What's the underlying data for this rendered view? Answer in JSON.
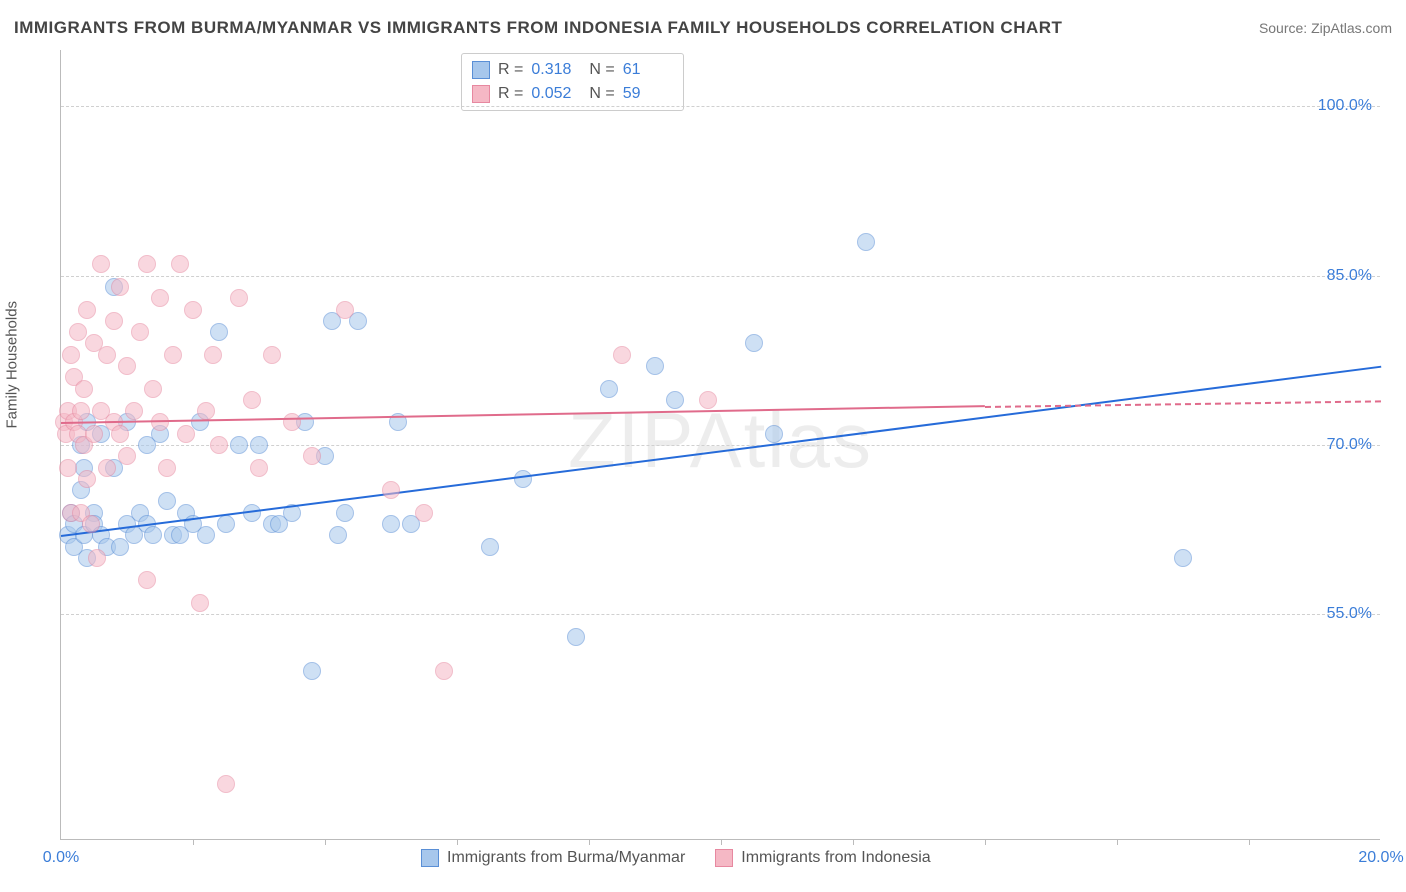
{
  "title": "IMMIGRANTS FROM BURMA/MYANMAR VS IMMIGRANTS FROM INDONESIA FAMILY HOUSEHOLDS CORRELATION CHART",
  "source": "Source: ZipAtlas.com",
  "ylabel": "Family Households",
  "watermark": "ZIPAtlas",
  "chart": {
    "type": "scatter",
    "xlim": [
      0,
      20
    ],
    "ylim": [
      35,
      105
    ],
    "marker_radius": 9,
    "marker_opacity": 0.55,
    "background_color": "#ffffff",
    "grid_color": "#d0d0d0",
    "axis_color": "#bbbbbb",
    "tick_color": "#3b7dd8",
    "yticks": [
      55.0,
      70.0,
      85.0,
      100.0
    ],
    "ytick_format": "%.1f%%",
    "xticks_minor": [
      2,
      4,
      6,
      8,
      10,
      12,
      14,
      16,
      18
    ],
    "xticks_labeled": [
      {
        "x": 0,
        "label": "0.0%"
      },
      {
        "x": 20,
        "label": "20.0%"
      }
    ]
  },
  "series": [
    {
      "id": "burma",
      "label": "Immigrants from Burma/Myanmar",
      "fill": "#a7c7ec",
      "stroke": "#5a8fd6",
      "line_color": "#266bd9",
      "r": "0.318",
      "n": "61",
      "trend": {
        "x1": 0,
        "y1": 62,
        "x2": 20,
        "y2": 77
      },
      "points": [
        [
          0.1,
          62
        ],
        [
          0.15,
          64
        ],
        [
          0.2,
          61
        ],
        [
          0.2,
          63
        ],
        [
          0.3,
          70
        ],
        [
          0.3,
          66
        ],
        [
          0.35,
          62
        ],
        [
          0.35,
          68
        ],
        [
          0.4,
          60
        ],
        [
          0.4,
          72
        ],
        [
          0.5,
          64
        ],
        [
          0.5,
          63
        ],
        [
          0.6,
          71
        ],
        [
          0.6,
          62
        ],
        [
          0.7,
          61
        ],
        [
          0.8,
          84
        ],
        [
          0.8,
          68
        ],
        [
          0.9,
          61
        ],
        [
          1.0,
          72
        ],
        [
          1.0,
          63
        ],
        [
          1.1,
          62
        ],
        [
          1.2,
          64
        ],
        [
          1.3,
          70
        ],
        [
          1.3,
          63
        ],
        [
          1.4,
          62
        ],
        [
          1.5,
          71
        ],
        [
          1.6,
          65
        ],
        [
          1.7,
          62
        ],
        [
          1.8,
          62
        ],
        [
          1.9,
          64
        ],
        [
          2.0,
          63
        ],
        [
          2.1,
          72
        ],
        [
          2.2,
          62
        ],
        [
          2.4,
          80
        ],
        [
          2.5,
          63
        ],
        [
          2.7,
          70
        ],
        [
          2.9,
          64
        ],
        [
          3.0,
          70
        ],
        [
          3.2,
          63
        ],
        [
          3.3,
          63
        ],
        [
          3.5,
          64
        ],
        [
          3.7,
          72
        ],
        [
          3.8,
          50
        ],
        [
          4.0,
          69
        ],
        [
          4.1,
          81
        ],
        [
          4.2,
          62
        ],
        [
          4.3,
          64
        ],
        [
          4.5,
          81
        ],
        [
          5.0,
          63
        ],
        [
          5.1,
          72
        ],
        [
          5.3,
          63
        ],
        [
          6.5,
          61
        ],
        [
          7.0,
          67
        ],
        [
          7.8,
          53
        ],
        [
          8.3,
          75
        ],
        [
          9.3,
          74
        ],
        [
          10.5,
          79
        ],
        [
          10.8,
          71
        ],
        [
          12.2,
          88
        ],
        [
          17.0,
          60
        ],
        [
          9.0,
          77
        ]
      ]
    },
    {
      "id": "indonesia",
      "label": "Immigrants from Indonesia",
      "fill": "#f5b8c5",
      "stroke": "#e788a0",
      "line_color": "#e06b8b",
      "r": "0.052",
      "n": "59",
      "trend_solid": {
        "x1": 0,
        "y1": 72,
        "x2": 14,
        "y2": 73.5
      },
      "trend_dashed": {
        "x1": 14,
        "y1": 73.5,
        "x2": 20,
        "y2": 74
      },
      "points": [
        [
          0.05,
          72
        ],
        [
          0.08,
          71
        ],
        [
          0.1,
          73
        ],
        [
          0.1,
          68
        ],
        [
          0.15,
          78
        ],
        [
          0.15,
          64
        ],
        [
          0.2,
          72
        ],
        [
          0.2,
          76
        ],
        [
          0.25,
          71
        ],
        [
          0.25,
          80
        ],
        [
          0.3,
          64
        ],
        [
          0.3,
          73
        ],
        [
          0.35,
          70
        ],
        [
          0.35,
          75
        ],
        [
          0.4,
          82
        ],
        [
          0.4,
          67
        ],
        [
          0.45,
          63
        ],
        [
          0.5,
          79
        ],
        [
          0.5,
          71
        ],
        [
          0.55,
          60
        ],
        [
          0.6,
          86
        ],
        [
          0.6,
          73
        ],
        [
          0.7,
          78
        ],
        [
          0.7,
          68
        ],
        [
          0.8,
          81
        ],
        [
          0.8,
          72
        ],
        [
          0.9,
          84
        ],
        [
          0.9,
          71
        ],
        [
          1.0,
          77
        ],
        [
          1.0,
          69
        ],
        [
          1.1,
          73
        ],
        [
          1.2,
          80
        ],
        [
          1.3,
          86
        ],
        [
          1.3,
          58
        ],
        [
          1.4,
          75
        ],
        [
          1.5,
          83
        ],
        [
          1.5,
          72
        ],
        [
          1.6,
          68
        ],
        [
          1.7,
          78
        ],
        [
          1.8,
          86
        ],
        [
          1.9,
          71
        ],
        [
          2.0,
          82
        ],
        [
          2.1,
          56
        ],
        [
          2.2,
          73
        ],
        [
          2.3,
          78
        ],
        [
          2.4,
          70
        ],
        [
          2.5,
          40
        ],
        [
          2.7,
          83
        ],
        [
          2.9,
          74
        ],
        [
          3.0,
          68
        ],
        [
          3.2,
          78
        ],
        [
          3.5,
          72
        ],
        [
          3.8,
          69
        ],
        [
          4.3,
          82
        ],
        [
          5.0,
          66
        ],
        [
          5.5,
          64
        ],
        [
          5.8,
          50
        ],
        [
          8.5,
          78
        ],
        [
          9.8,
          74
        ]
      ]
    }
  ]
}
